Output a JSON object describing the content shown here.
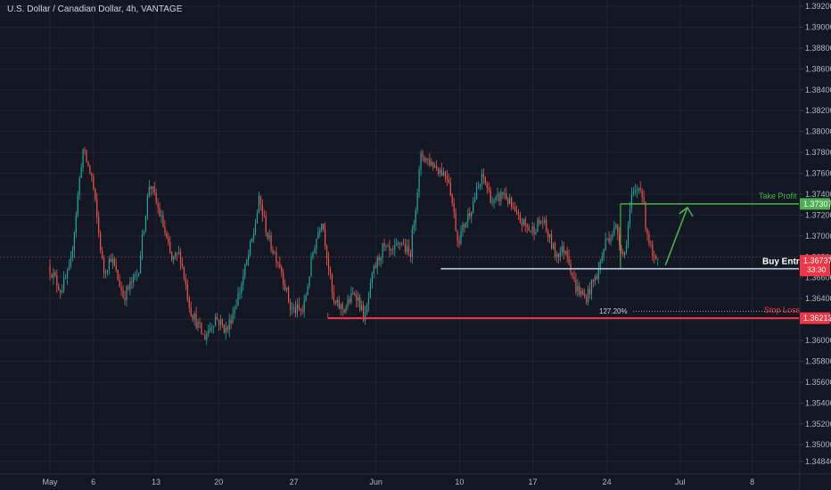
{
  "window": {
    "title": "U.S. Dollar / Canadian Dollar, 4h, VANTAGE"
  },
  "colors": {
    "background": "#131722",
    "grid": "#1f2433",
    "up_candle": "#26a69a",
    "down_candle": "#ef5350",
    "take_profit": "#4caf50",
    "buy_entry": "#d1d4dc",
    "stop_loss": "#f23645",
    "price_badge": "#f23645"
  },
  "chart_data": {
    "type": "candlestick",
    "title": "U.S. Dollar / Canadian Dollar, 4h, VANTAGE",
    "x_ticks": [
      "May",
      "6",
      "13",
      "20",
      "27",
      "Jun",
      "10",
      "17",
      "24",
      "Jul",
      "8"
    ],
    "y_ticks": [
      "1.39200",
      "1.39000",
      "1.38800",
      "1.38600",
      "1.38400",
      "1.38200",
      "1.38000",
      "1.37800",
      "1.37600",
      "1.37400",
      "1.37200",
      "1.37000",
      "1.36800",
      "1.36600",
      "1.36400",
      "1.36200",
      "1.36000",
      "1.35800",
      "1.35600",
      "1.35400",
      "1.35200",
      "1.35000",
      "1.34840"
    ],
    "ylim": [
      1.3484,
      1.392
    ],
    "grid": true,
    "anchors": [
      {
        "day": 0.0,
        "price": 1.3672
      },
      {
        "day": 1.2,
        "price": 1.3648
      },
      {
        "day": 2.1,
        "price": 1.3668
      },
      {
        "day": 3.3,
        "price": 1.3783
      },
      {
        "day": 4.2,
        "price": 1.3755
      },
      {
        "day": 5.3,
        "price": 1.3665
      },
      {
        "day": 6.0,
        "price": 1.368
      },
      {
        "day": 7.2,
        "price": 1.3642
      },
      {
        "day": 8.6,
        "price": 1.3665
      },
      {
        "day": 9.7,
        "price": 1.3752
      },
      {
        "day": 11.0,
        "price": 1.371
      },
      {
        "day": 11.8,
        "price": 1.3676
      },
      {
        "day": 12.6,
        "price": 1.3683
      },
      {
        "day": 13.6,
        "price": 1.363
      },
      {
        "day": 14.9,
        "price": 1.3602
      },
      {
        "day": 16.0,
        "price": 1.3622
      },
      {
        "day": 17.1,
        "price": 1.3609
      },
      {
        "day": 18.4,
        "price": 1.365
      },
      {
        "day": 19.6,
        "price": 1.37
      },
      {
        "day": 20.2,
        "price": 1.3735
      },
      {
        "day": 21.1,
        "price": 1.3696
      },
      {
        "day": 22.2,
        "price": 1.3672
      },
      {
        "day": 23.2,
        "price": 1.363
      },
      {
        "day": 24.4,
        "price": 1.3628
      },
      {
        "day": 25.4,
        "price": 1.3688
      },
      {
        "day": 26.2,
        "price": 1.3718
      },
      {
        "day": 27.3,
        "price": 1.3635
      },
      {
        "day": 28.3,
        "price": 1.363
      },
      {
        "day": 29.4,
        "price": 1.3647
      },
      {
        "day": 30.3,
        "price": 1.362
      },
      {
        "day": 31.1,
        "price": 1.3665
      },
      {
        "day": 32.0,
        "price": 1.3688
      },
      {
        "day": 32.9,
        "price": 1.3682
      },
      {
        "day": 33.8,
        "price": 1.3695
      },
      {
        "day": 34.6,
        "price": 1.368
      },
      {
        "day": 35.7,
        "price": 1.3778
      },
      {
        "day": 36.9,
        "price": 1.3768
      },
      {
        "day": 38.3,
        "price": 1.3757
      },
      {
        "day": 39.2,
        "price": 1.3695
      },
      {
        "day": 40.5,
        "price": 1.3728
      },
      {
        "day": 41.6,
        "price": 1.3757
      },
      {
        "day": 42.6,
        "price": 1.373
      },
      {
        "day": 43.6,
        "price": 1.3742
      },
      {
        "day": 44.8,
        "price": 1.3718
      },
      {
        "day": 46.2,
        "price": 1.3705
      },
      {
        "day": 47.3,
        "price": 1.3715
      },
      {
        "day": 48.5,
        "price": 1.3683
      },
      {
        "day": 49.6,
        "price": 1.3688
      },
      {
        "day": 50.4,
        "price": 1.3652
      },
      {
        "day": 51.4,
        "price": 1.364
      },
      {
        "day": 52.6,
        "price": 1.3665
      },
      {
        "day": 53.4,
        "price": 1.3697
      },
      {
        "day": 54.4,
        "price": 1.3708
      },
      {
        "day": 55.1,
        "price": 1.3678
      },
      {
        "day": 55.8,
        "price": 1.3735
      },
      {
        "day": 56.7,
        "price": 1.375
      },
      {
        "day": 57.2,
        "price": 1.371
      },
      {
        "day": 57.9,
        "price": 1.3676
      },
      {
        "day": 58.2,
        "price": 1.3674
      }
    ],
    "annotations": {
      "take_profit": {
        "label": "Take Profit",
        "price": 1.37307,
        "price_label": "1.37307"
      },
      "buy_entry": {
        "label": "Buy Entry",
        "price": 1.36737,
        "price_label": "1.36737",
        "countdown": "33:30"
      },
      "stop_loss": {
        "label": "Stop Loss",
        "price": 1.36213,
        "price_label": "1.36213"
      },
      "fib": {
        "label": "127.20%",
        "price": 1.3628
      }
    }
  }
}
